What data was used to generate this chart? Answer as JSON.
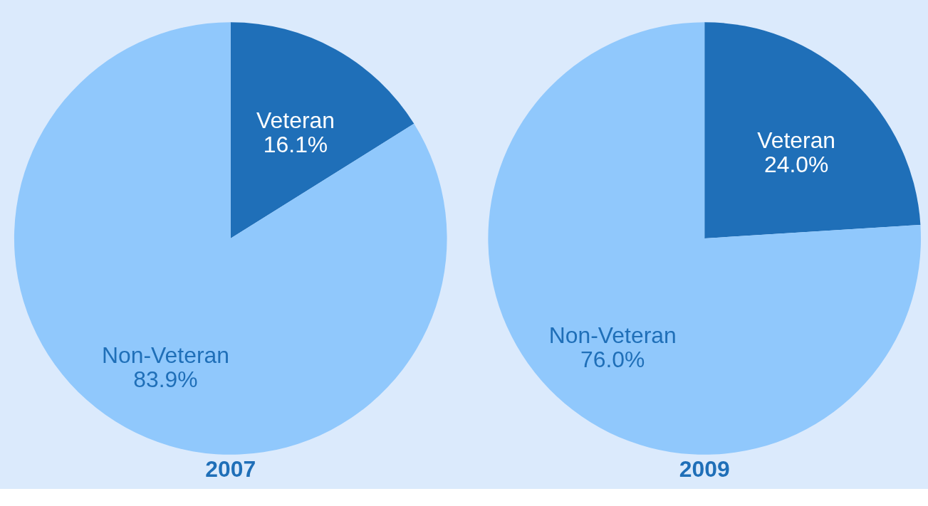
{
  "chart_data": [
    {
      "type": "pie",
      "title": "2007",
      "categories": [
        "Veteran",
        "Non-Veteran"
      ],
      "values": [
        16.1,
        83.9
      ],
      "colors": [
        "#1f6fb8",
        "#90c8fc"
      ],
      "value_labels": [
        "16.1%",
        "83.9%"
      ],
      "legend": false
    },
    {
      "type": "pie",
      "title": "2009",
      "categories": [
        "Veteran",
        "Non-Veteran"
      ],
      "values": [
        24.0,
        76.0
      ],
      "colors": [
        "#1f6fb8",
        "#90c8fc"
      ],
      "value_labels": [
        "24.0%",
        "76.0%"
      ],
      "legend": false
    }
  ]
}
